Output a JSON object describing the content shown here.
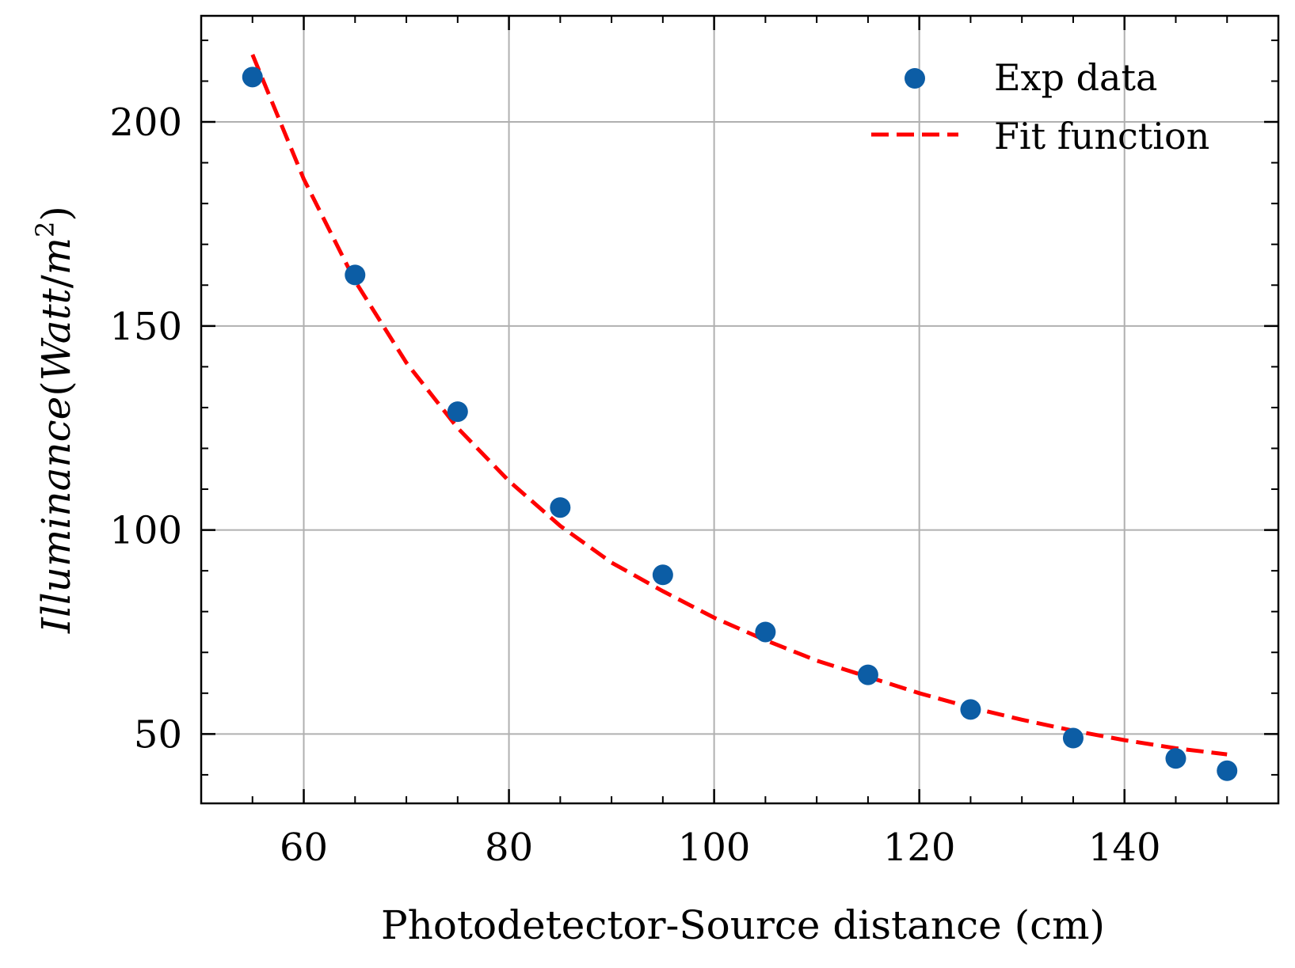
{
  "chart_data": {
    "type": "scatter",
    "xlabel": "Photodetector-Source distance (cm)",
    "ylabel_parts": [
      "Illuminance",
      "(",
      "Watt",
      "/",
      "m",
      "2",
      ")"
    ],
    "xlim": [
      50,
      155
    ],
    "ylim": [
      33,
      226
    ],
    "xticks": [
      60,
      80,
      100,
      120,
      140
    ],
    "yticks": [
      50,
      100,
      150,
      200
    ],
    "x_minor_step": 5,
    "y_minor_step": 10,
    "grid": true,
    "legend_position": "top-right",
    "series": [
      {
        "name": "Exp data",
        "kind": "scatter",
        "color": "#0C5DA5",
        "x": [
          55,
          65,
          75,
          85,
          95,
          105,
          115,
          125,
          135,
          145,
          150
        ],
        "y": [
          211,
          162.5,
          129,
          105.5,
          89,
          75,
          64.5,
          56,
          49,
          44,
          41
        ]
      },
      {
        "name": "Fit function",
        "kind": "line",
        "style": "dashed",
        "color": "#FF0000",
        "x": [
          55,
          60,
          65,
          70,
          75,
          80,
          85,
          90,
          95,
          100,
          105,
          110,
          115,
          120,
          125,
          130,
          135,
          140,
          145,
          150
        ],
        "y": [
          216.5,
          186,
          161,
          141,
          125,
          112,
          101,
          92,
          85,
          78.5,
          73,
          68,
          64,
          60,
          56.5,
          53.5,
          50.8,
          48.5,
          46.5,
          45
        ]
      }
    ]
  }
}
